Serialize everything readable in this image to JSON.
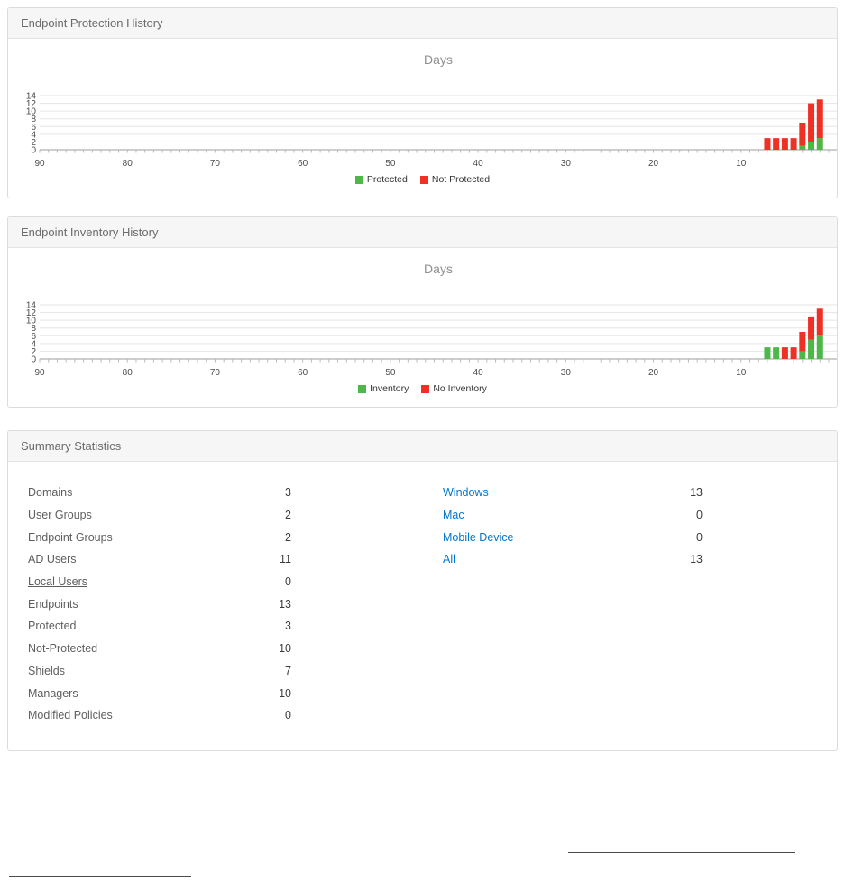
{
  "colors": {
    "protected_green": "#4db748",
    "not_protected_red": "#ee3124",
    "link_blue": "#0076ce",
    "panel_header_bg": "#f6f6f6"
  },
  "panels": {
    "protection": {
      "title": "Endpoint Protection History"
    },
    "inventory": {
      "title": "Endpoint Inventory History"
    },
    "summary": {
      "title": "Summary Statistics",
      "left_rows": [
        {
          "label": "Domains",
          "value": "3"
        },
        {
          "label": "User Groups",
          "value": "2"
        },
        {
          "label": "Endpoint Groups",
          "value": "2"
        },
        {
          "label": "AD Users",
          "value": "11"
        },
        {
          "label": "Local Users",
          "value": "0"
        },
        {
          "label": "Endpoints",
          "value": "13"
        },
        {
          "label": "Protected",
          "value": "3"
        },
        {
          "label": "Not-Protected",
          "value": "10"
        },
        {
          "label": "Shields",
          "value": "7"
        },
        {
          "label": "Managers",
          "value": "10"
        },
        {
          "label": "Modified Policies",
          "value": "0"
        }
      ],
      "right_rows": [
        {
          "label": "Windows",
          "value": "13"
        },
        {
          "label": "Mac",
          "value": "0"
        },
        {
          "label": "Mobile Device",
          "value": "0"
        },
        {
          "label": "All",
          "value": "13"
        }
      ]
    }
  },
  "chart_data": [
    {
      "type": "bar",
      "stacked": true,
      "title": "Days",
      "xlabel": "Days (days ago, axis reversed 90 to 0)",
      "ylabel": "",
      "x_ticks": [
        90,
        80,
        70,
        60,
        50,
        40,
        30,
        20,
        10
      ],
      "x_range": [
        90,
        0
      ],
      "ylim": [
        0,
        14
      ],
      "y_ticks": [
        0,
        2,
        4,
        6,
        8,
        10,
        12,
        14
      ],
      "grid": true,
      "legend_position": "bottom",
      "series": [
        {
          "key": "green",
          "name": "Protected",
          "color": "#4db748"
        },
        {
          "key": "red",
          "name": "Not Protected",
          "color": "#ee3124"
        }
      ],
      "bars": [
        {
          "day": 7,
          "green": 0,
          "red": 3
        },
        {
          "day": 6,
          "green": 0,
          "red": 3
        },
        {
          "day": 5,
          "green": 0,
          "red": 3
        },
        {
          "day": 4,
          "green": 0,
          "red": 3
        },
        {
          "day": 3,
          "green": 1,
          "red": 6
        },
        {
          "day": 2,
          "green": 2,
          "red": 10
        },
        {
          "day": 1,
          "green": 3,
          "red": 10
        }
      ]
    },
    {
      "type": "bar",
      "stacked": true,
      "title": "Days",
      "xlabel": "Days (days ago, axis reversed 90 to 0)",
      "ylabel": "",
      "x_ticks": [
        90,
        80,
        70,
        60,
        50,
        40,
        30,
        20,
        10
      ],
      "x_range": [
        90,
        0
      ],
      "ylim": [
        0,
        14
      ],
      "y_ticks": [
        0,
        2,
        4,
        6,
        8,
        10,
        12,
        14
      ],
      "grid": true,
      "legend_position": "bottom",
      "series": [
        {
          "key": "green",
          "name": "Inventory",
          "color": "#4db748"
        },
        {
          "key": "red",
          "name": "No Inventory",
          "color": "#ee3124"
        }
      ],
      "bars": [
        {
          "day": 7,
          "green": 3,
          "red": 0
        },
        {
          "day": 6,
          "green": 3,
          "red": 0
        },
        {
          "day": 5,
          "green": 0,
          "red": 3
        },
        {
          "day": 4,
          "green": 0,
          "red": 3
        },
        {
          "day": 3,
          "green": 2,
          "red": 5
        },
        {
          "day": 2,
          "green": 5,
          "red": 6
        },
        {
          "day": 1,
          "green": 6,
          "red": 7
        }
      ]
    }
  ]
}
